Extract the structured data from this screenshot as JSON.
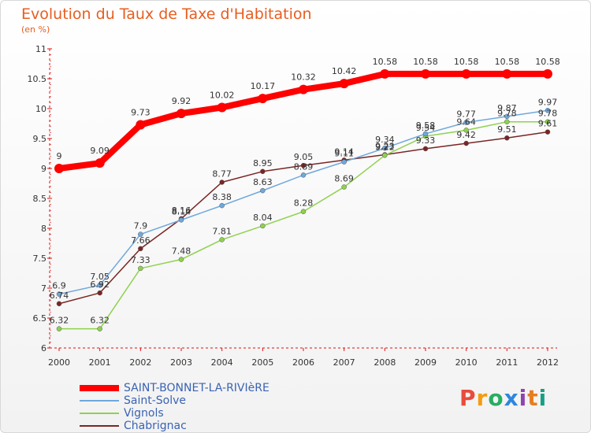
{
  "header": {
    "title": "Evolution du Taux de Taxe d'Habitation",
    "subtitle": "(en %)"
  },
  "logo": {
    "text": "Proxiti",
    "colors": [
      "#e74c3c",
      "#f39c12",
      "#27ae60",
      "#2e86de",
      "#8e44ad",
      "#e67e22",
      "#16a085"
    ]
  },
  "chart_data": {
    "type": "line",
    "x": [
      "2000",
      "2001",
      "2002",
      "2003",
      "2004",
      "2005",
      "2006",
      "2007",
      "2008",
      "2009",
      "2010",
      "2011",
      "2012"
    ],
    "y_ticks": [
      "6",
      "6.5",
      "7",
      "7.5",
      "8",
      "8.5",
      "9",
      "9.5",
      "10",
      "10.5",
      "11"
    ],
    "ylim": [
      6,
      11
    ],
    "grid": false,
    "legend_position": "bottom-left",
    "series": [
      {
        "name": "SAINT-BONNET-LA-RIVIèRE",
        "color": "#ff0000",
        "width": 8,
        "values": [
          9,
          9.09,
          9.73,
          9.92,
          10.02,
          10.17,
          10.32,
          10.42,
          10.58,
          10.58,
          10.58,
          10.58,
          10.58
        ],
        "labels": [
          "9",
          "9.09",
          "9.73",
          "9.92",
          "10.02",
          "10.17",
          "10.32",
          "10.42",
          "10.58",
          "10.58",
          "10.58",
          "10.58",
          "10.58"
        ]
      },
      {
        "name": "Saint-Solve",
        "color": "#6fa8dc",
        "width": 1.5,
        "values": [
          6.9,
          7.05,
          7.9,
          8.14,
          8.38,
          8.63,
          8.89,
          9.11,
          9.34,
          9.58,
          9.77,
          9.87,
          9.97
        ],
        "labels": [
          "6.9",
          "7.05",
          "7.9",
          "8.14",
          "8.38",
          "8.63",
          "8.89",
          "9.11",
          "9.34",
          "9.58",
          "9.77",
          "9.87",
          "9.97"
        ]
      },
      {
        "name": "Vignols",
        "color": "#8fd14f",
        "width": 1.5,
        "values": [
          6.32,
          6.32,
          7.33,
          7.48,
          7.81,
          8.04,
          8.28,
          8.69,
          9.22,
          9.54,
          9.64,
          9.78,
          9.78
        ],
        "labels": [
          "6.32",
          "6.32",
          "7.33",
          "7.48",
          "7.81",
          "8.04",
          "8.28",
          "8.69",
          "9.22",
          "9.54",
          "9.64",
          "9.78",
          "9.78"
        ]
      },
      {
        "name": "Chabrignac",
        "color": "#7b2525",
        "width": 1.5,
        "values": [
          6.74,
          6.92,
          7.66,
          8.16,
          8.77,
          8.95,
          9.05,
          9.14,
          9.23,
          9.33,
          9.42,
          9.51,
          9.61
        ],
        "labels": [
          "6.74",
          "6.92",
          "7.66",
          "8.16",
          "8.77",
          "8.95",
          "9.05",
          "9.14",
          "9.23",
          "9.33",
          "9.42",
          "9.51",
          "9.61"
        ]
      }
    ]
  }
}
